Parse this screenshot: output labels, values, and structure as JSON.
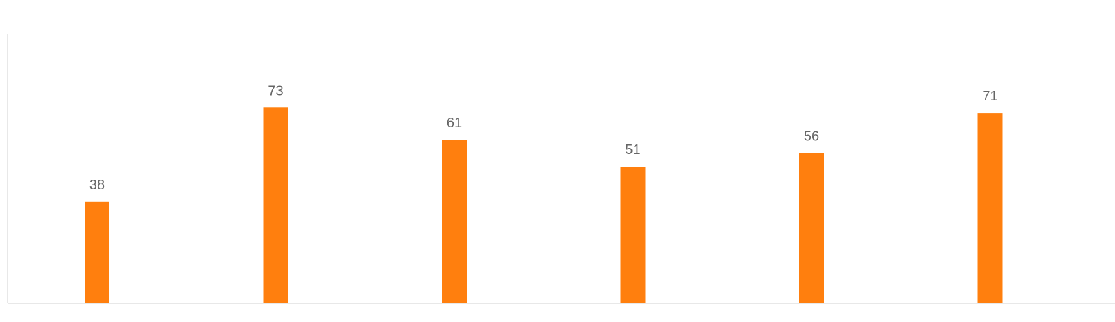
{
  "chart_data": {
    "type": "bar",
    "categories": [
      "",
      "",
      "",
      "",
      "",
      ""
    ],
    "values": [
      38,
      73,
      61,
      51,
      56,
      71
    ],
    "ylim": [
      0,
      100
    ],
    "bar_color": "#ff7f0e",
    "label_color": "#666666",
    "axis_color": "#d9d9d9",
    "grid": false,
    "legend": "none",
    "data_labels": true
  }
}
